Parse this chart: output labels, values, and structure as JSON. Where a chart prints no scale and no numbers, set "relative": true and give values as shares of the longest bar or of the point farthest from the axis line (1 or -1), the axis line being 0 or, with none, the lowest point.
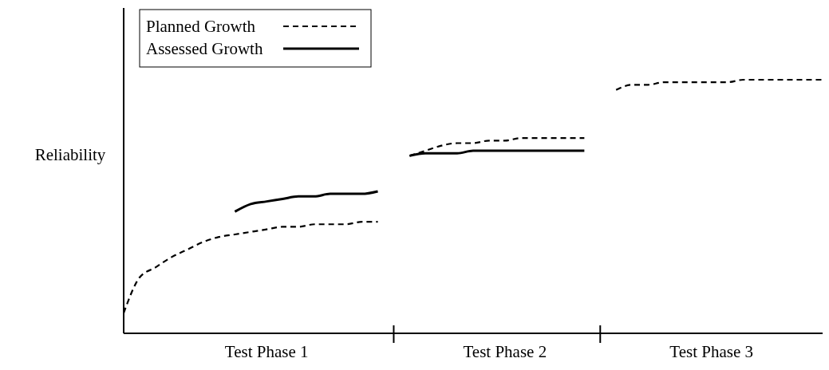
{
  "chart_data": {
    "type": "line",
    "relative": true,
    "ylabel": "Reliability",
    "categories": [
      null,
      null,
      null,
      null,
      null,
      null,
      null,
      null,
      null,
      "Test Phase 1",
      null,
      null,
      null,
      null,
      null,
      null,
      null,
      null,
      null,
      null,
      null,
      null,
      null,
      null,
      "Test Phase 2",
      null,
      null,
      null,
      null,
      null,
      null,
      null,
      null,
      null,
      null,
      null,
      null,
      "Test Phase 3",
      null,
      null,
      null,
      null,
      null,
      null,
      null
    ],
    "series": [
      {
        "name": "Planned Growth",
        "color": "#000000",
        "line_style": "dashed",
        "values": [
          0.08,
          0.22,
          0.26,
          0.3,
          0.33,
          0.36,
          0.38,
          0.39,
          0.4,
          0.41,
          0.42,
          0.42,
          0.43,
          0.43,
          0.43,
          0.44,
          0.44,
          null,
          0.7,
          0.72,
          0.74,
          0.75,
          0.75,
          0.76,
          0.76,
          0.77,
          0.77,
          0.77,
          0.77,
          0.77,
          null,
          0.96,
          0.98,
          0.98,
          0.99,
          0.99,
          0.99,
          0.99,
          0.99,
          1.0,
          1.0,
          1.0,
          1.0,
          1.0,
          1.0
        ]
      },
      {
        "name": "Assessed Growth",
        "color": "#000000",
        "line_style": "solid",
        "values": [
          null,
          null,
          null,
          null,
          null,
          null,
          null,
          0.48,
          0.51,
          0.52,
          0.53,
          0.54,
          0.54,
          0.55,
          0.55,
          0.55,
          0.56,
          null,
          0.7,
          0.71,
          0.71,
          0.71,
          0.72,
          0.72,
          0.72,
          0.72,
          0.72,
          0.72,
          0.72,
          0.72,
          null,
          null,
          null,
          null,
          null,
          null,
          null,
          null,
          null,
          null,
          null,
          null,
          null,
          null,
          null
        ]
      }
    ],
    "legend": "top left"
  }
}
